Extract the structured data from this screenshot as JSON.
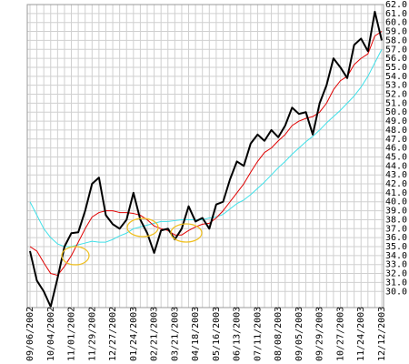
{
  "chart_data": {
    "type": "line",
    "categories": [
      "09/06/2002",
      null,
      null,
      "10/04/2002",
      null,
      null,
      "11/01/2002",
      null,
      null,
      "11/29/2002",
      null,
      null,
      "12/27/2002",
      null,
      null,
      "01/24/2003",
      null,
      null,
      "02/21/2003",
      null,
      null,
      "03/21/2003",
      null,
      null,
      "04/18/2003",
      null,
      null,
      "05/16/2003",
      null,
      null,
      "06/13/2003",
      null,
      null,
      "07/11/2003",
      null,
      null,
      "08/08/2003",
      null,
      null,
      "09/05/2003",
      null,
      null,
      "09/29/2003",
      null,
      null,
      "10/27/2003",
      null,
      null,
      "11/24/2003",
      null,
      null,
      "12/12/2003"
    ],
    "series": [
      {
        "color": "#000000",
        "width": 2,
        "values": [
          34.5,
          31.2,
          30,
          28.3,
          31.5,
          35,
          36.5,
          36.6,
          39,
          42,
          42.7,
          38.5,
          37.5,
          37,
          38,
          41,
          38,
          36.5,
          34.3,
          36.8,
          37,
          35.8,
          37,
          39.5,
          37.8,
          38.2,
          37,
          39.7,
          40,
          42.5,
          44.5,
          44,
          46.5,
          47.5,
          46.8,
          48,
          47.2,
          48.5,
          50.5,
          49.8,
          50,
          47.5,
          51,
          53,
          56,
          55,
          53.8,
          57.5,
          58.2,
          56.8,
          61.2,
          58
        ]
      },
      {
        "color": "#e00000",
        "width": 1,
        "values": [
          35,
          34.5,
          33.2,
          32,
          31.8,
          32.8,
          34,
          35.5,
          37,
          38.3,
          38.8,
          39,
          39,
          38.8,
          38.8,
          38.7,
          38.5,
          38,
          37.3,
          37,
          36.8,
          36.3,
          36.3,
          36.8,
          37.2,
          37.5,
          37.6,
          38.2,
          39,
          40,
          41,
          42,
          43.3,
          44.5,
          45.5,
          46,
          46.8,
          47.5,
          48.5,
          49,
          49.3,
          49.5,
          50,
          51,
          52.5,
          53.5,
          54,
          55.3,
          56,
          56.5,
          58.5,
          59
        ]
      },
      {
        "color": "#40e0e8",
        "width": 1,
        "values": [
          40,
          38.5,
          37,
          36,
          35.3,
          35,
          35,
          35.2,
          35.4,
          35.6,
          35.5,
          35.5,
          35.8,
          36.2,
          36.5,
          37,
          37.2,
          37.4,
          37.6,
          37.8,
          37.8,
          37.9,
          38,
          38,
          38,
          38,
          38.2,
          38.3,
          38.6,
          39.2,
          39.8,
          40.2,
          40.8,
          41.5,
          42.2,
          43,
          43.8,
          44.5,
          45.3,
          46,
          46.7,
          47.3,
          48,
          48.8,
          49.5,
          50.2,
          51,
          51.8,
          52.8,
          54,
          55.5,
          57
        ]
      }
    ],
    "ylim": [
      28.2,
      62
    ],
    "yticks": [
      {
        "value": 30,
        "label": "30.0"
      },
      {
        "value": 31,
        "label": "31.0"
      },
      {
        "value": 32,
        "label": "32.0"
      },
      {
        "value": 33,
        "label": "33.0"
      },
      {
        "value": 34,
        "label": "34.0"
      },
      {
        "value": 35,
        "label": "35.0"
      },
      {
        "value": 36,
        "label": "36.0"
      },
      {
        "value": 37,
        "label": "37.0"
      },
      {
        "value": 38,
        "label": "38.0"
      },
      {
        "value": 39,
        "label": "39.0"
      },
      {
        "value": 40,
        "label": "40.0"
      },
      {
        "value": 41,
        "label": "41.0"
      },
      {
        "value": 42,
        "label": "42.0"
      },
      {
        "value": 43,
        "label": "43.0"
      },
      {
        "value": 44,
        "label": "44.0"
      },
      {
        "value": 45,
        "label": "45.0"
      },
      {
        "value": 46,
        "label": "46.0"
      },
      {
        "value": 47,
        "label": "47.0"
      },
      {
        "value": 48,
        "label": "48.0"
      },
      {
        "value": 49,
        "label": "49.0"
      },
      {
        "value": 50,
        "label": "50.0"
      },
      {
        "value": 51,
        "label": "51.0"
      },
      {
        "value": 52,
        "label": "52.0"
      },
      {
        "value": 53,
        "label": "53.0"
      },
      {
        "value": 54,
        "label": "54.0"
      },
      {
        "value": 55,
        "label": "55.0"
      },
      {
        "value": 56,
        "label": "56.0"
      },
      {
        "value": 57,
        "label": "57.0"
      },
      {
        "value": 58,
        "label": "58.0"
      },
      {
        "value": 59,
        "label": "59.0"
      },
      {
        "value": 60,
        "label": "60.0"
      },
      {
        "value": 61,
        "label": "61.0"
      },
      {
        "value": 62,
        "label": "62.0"
      }
    ],
    "grid": true
  }
}
